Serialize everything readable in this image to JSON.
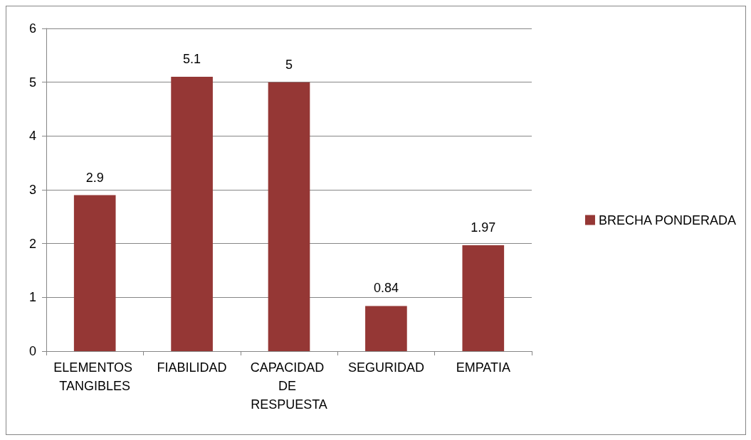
{
  "chart_data": {
    "type": "bar",
    "categories": [
      "ELEMENTOS TANGIBLES",
      "FIABILIDAD",
      "CAPACIDAD DE RESPUESTA",
      "SEGURIDAD",
      "EMPATIA"
    ],
    "series": [
      {
        "name": "BRECHA PONDERADA",
        "color": "#953735",
        "values": [
          2.9,
          5.1,
          5,
          0.84,
          1.97
        ]
      }
    ],
    "ylim": [
      0,
      6
    ],
    "yticks": [
      0,
      1,
      2,
      3,
      4,
      5,
      6
    ],
    "grid": "y",
    "legend": "right",
    "data_labels": true
  }
}
